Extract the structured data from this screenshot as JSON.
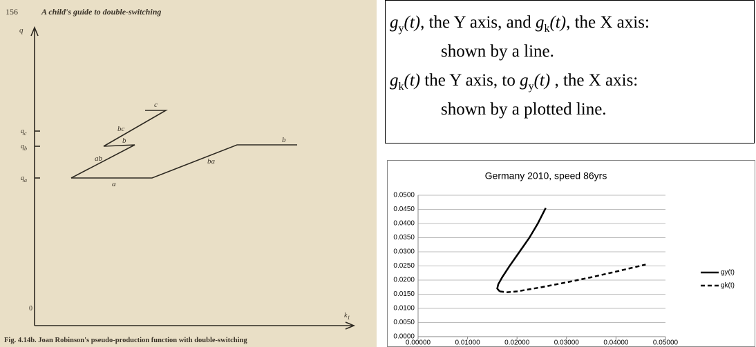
{
  "figure": {
    "page_number": "156",
    "running_title": "A child's guide to double-switching",
    "y_axis": {
      "symbol": "q",
      "ticks": [
        {
          "symbol": "q",
          "sub": "c"
        },
        {
          "symbol": "q",
          "sub": "b"
        },
        {
          "symbol": "q",
          "sub": "a"
        }
      ]
    },
    "origin": "0",
    "x_axis": {
      "symbol": "k",
      "sub": "1"
    },
    "segment_labels": [
      "c",
      "bc",
      "b",
      "ab",
      "a",
      "ba",
      "b"
    ],
    "caption": "Fig. 4.14b. Joan Robinson's pseudo-production function with double-switching"
  },
  "text_box": {
    "lines": [
      [
        "g",
        "y",
        "(t)",
        ", the Y axis, and ",
        "g",
        "k",
        "(t)",
        ", the X axis:"
      ],
      [
        "shown by a line."
      ],
      [
        "g",
        "k",
        "(t)",
        " the Y axis, to ",
        "g",
        "y",
        "(t)",
        " , the X axis:"
      ],
      [
        "shown by a plotted line."
      ]
    ]
  },
  "chart_data": {
    "type": "line",
    "title": "Germany 2010, speed 86yrs",
    "series": [
      {
        "name": "gy(t)",
        "color": "#000000",
        "dash": "solid",
        "x": [
          0.0165,
          0.016,
          0.0162,
          0.017,
          0.0185,
          0.0205,
          0.0225,
          0.0242,
          0.0258
        ],
        "values": [
          0.016,
          0.017,
          0.0185,
          0.021,
          0.025,
          0.03,
          0.035,
          0.04,
          0.0455
        ]
      },
      {
        "name": "gk(t)",
        "color": "#000000",
        "dash": "dashed",
        "x": [
          0.0165,
          0.018,
          0.02,
          0.025,
          0.03,
          0.035,
          0.04,
          0.046
        ],
        "values": [
          0.016,
          0.0157,
          0.016,
          0.0175,
          0.0192,
          0.021,
          0.023,
          0.0255
        ]
      }
    ],
    "xlim": [
      0,
      0.05
    ],
    "ylim": [
      0,
      0.05
    ],
    "xticks": [
      {
        "value": 0,
        "label": "0.00000"
      },
      {
        "value": 0.01,
        "label": "0.01000"
      },
      {
        "value": 0.02,
        "label": "0.02000"
      },
      {
        "value": 0.03,
        "label": "0.03000"
      },
      {
        "value": 0.04,
        "label": "0.04000"
      },
      {
        "value": 0.05,
        "label": "0.05000"
      }
    ],
    "yticks": [
      {
        "value": 0,
        "label": "0.0000"
      },
      {
        "value": 0.005,
        "label": "0.0050"
      },
      {
        "value": 0.01,
        "label": "0.0100"
      },
      {
        "value": 0.015,
        "label": "0.0150"
      },
      {
        "value": 0.02,
        "label": "0.0200"
      },
      {
        "value": 0.025,
        "label": "0.0250"
      },
      {
        "value": 0.03,
        "label": "0.0300"
      },
      {
        "value": 0.035,
        "label": "0.0350"
      },
      {
        "value": 0.04,
        "label": "0.0400"
      },
      {
        "value": 0.045,
        "label": "0.0450"
      },
      {
        "value": 0.05,
        "label": "0.0500"
      }
    ],
    "grid": true,
    "legend": "right"
  }
}
